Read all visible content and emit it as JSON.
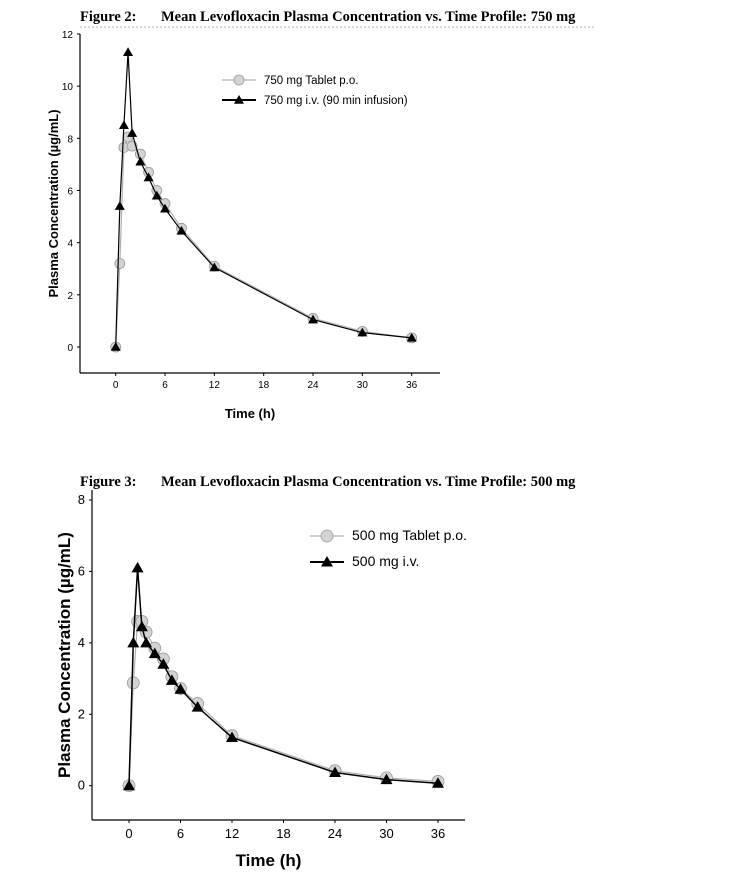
{
  "chart_data": [
    {
      "type": "line",
      "figure_label": "Figure 2:",
      "title": "Mean Levofloxacin Plasma Concentration vs. Time Profile: 750 mg",
      "xlabel": "Time (h)",
      "ylabel": "Plasma Concentration (µg/mL)",
      "xlim": [
        -4.3,
        39.4
      ],
      "ylim": [
        -1,
        12
      ],
      "xticks": [
        0,
        6,
        12,
        18,
        24,
        30,
        36
      ],
      "yticks": [
        0,
        2,
        4,
        6,
        8,
        10,
        12
      ],
      "grid": false,
      "legend_position": "top-right",
      "x": [
        0,
        0.5,
        1,
        1.5,
        2,
        3,
        4,
        5,
        6,
        8,
        12,
        24,
        30,
        36
      ],
      "series": [
        {
          "name": "750 mg Tablet p.o.",
          "marker": "circle",
          "color": "#b0b0b0",
          "values": [
            0,
            3.2,
            7.65,
            8.05,
            7.7,
            7.4,
            6.7,
            6.0,
            5.5,
            4.55,
            3.1,
            1.1,
            0.6,
            0.35
          ]
        },
        {
          "name": "750 mg i.v. (90 min infusion)",
          "marker": "triangle",
          "color": "#000000",
          "values": [
            0,
            5.4,
            8.5,
            11.3,
            8.2,
            7.1,
            6.5,
            5.8,
            5.3,
            4.45,
            3.05,
            1.05,
            0.55,
            0.35
          ]
        }
      ]
    },
    {
      "type": "line",
      "figure_label": "Figure 3:",
      "title": "Mean Levofloxacin Plasma Concentration vs. Time Profile: 500 mg",
      "xlabel": "Time (h)",
      "ylabel": "Plasma Concentration (µg/mL)",
      "xlim": [
        -4.3,
        39.1
      ],
      "ylim": [
        -1,
        8
      ],
      "xticks": [
        0,
        6,
        12,
        18,
        24,
        30,
        36
      ],
      "yticks": [
        0,
        2,
        4,
        6,
        8
      ],
      "grid": false,
      "legend_position": "top-right",
      "x": [
        0,
        0.5,
        1,
        1.5,
        2,
        3,
        4,
        5,
        6,
        8,
        12,
        24,
        30,
        36
      ],
      "series": [
        {
          "name": "500 mg Tablet p.o.",
          "marker": "circle",
          "color": "#b0b0b0",
          "values": [
            0,
            2.88,
            4.6,
            4.6,
            4.3,
            3.85,
            3.55,
            3.05,
            2.72,
            2.3,
            1.4,
            0.42,
            0.22,
            0.12
          ]
        },
        {
          "name": "500 mg i.v.",
          "marker": "triangle",
          "color": "#000000",
          "values": [
            0,
            4.0,
            6.1,
            4.45,
            4.0,
            3.7,
            3.4,
            2.95,
            2.7,
            2.2,
            1.35,
            0.37,
            0.17,
            0.07
          ]
        }
      ]
    }
  ]
}
